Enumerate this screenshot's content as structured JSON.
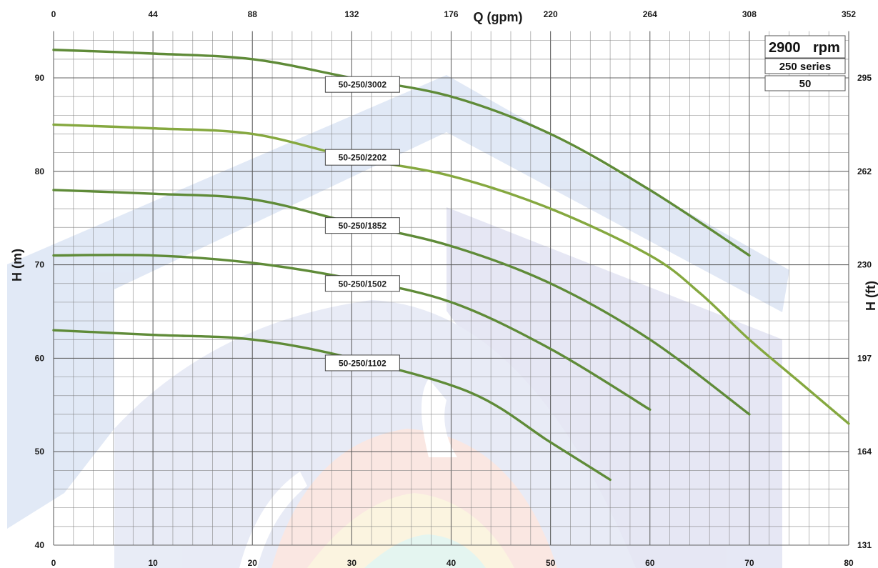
{
  "chart_data": {
    "type": "line",
    "x_bottom": {
      "label": "",
      "range": [
        0,
        80
      ],
      "ticks": [
        "0",
        "10",
        "20",
        "30",
        "40",
        "50",
        "60",
        "70",
        "80"
      ]
    },
    "x_top": {
      "label": "Q (gpm)",
      "range": [
        0,
        352
      ],
      "ticks": [
        "0",
        "44",
        "88",
        "132",
        "176",
        "220",
        "264",
        "308",
        "352"
      ]
    },
    "y_left": {
      "label": "H (m)",
      "range": [
        40,
        95
      ],
      "ticks": [
        "40",
        "50",
        "60",
        "70",
        "80",
        "90"
      ]
    },
    "y_right": {
      "label": "H (ft)",
      "ticks": [
        "131",
        "164",
        "197",
        "230",
        "262",
        "295"
      ]
    },
    "grid": true,
    "legend": "none",
    "info_box": {
      "speed": "2900",
      "speed_unit": "rpm",
      "series_name": "250 series",
      "frequency": "50"
    },
    "series": [
      {
        "name": "50-250/3002",
        "label_at": [
          30,
          89.3
        ],
        "points": [
          [
            0,
            93
          ],
          [
            10,
            92.6
          ],
          [
            20,
            92
          ],
          [
            30,
            90
          ],
          [
            40,
            88
          ],
          [
            50,
            84
          ],
          [
            60,
            78
          ],
          [
            70,
            71
          ]
        ]
      },
      {
        "name": "50-250/2202",
        "label_at": [
          30,
          81.5
        ],
        "points": [
          [
            0,
            85
          ],
          [
            10,
            84.6
          ],
          [
            20,
            84
          ],
          [
            30,
            81.5
          ],
          [
            40,
            79.5
          ],
          [
            50,
            76
          ],
          [
            60,
            71
          ],
          [
            65,
            67
          ],
          [
            70,
            62
          ],
          [
            75,
            57.5
          ],
          [
            80,
            53
          ]
        ]
      },
      {
        "name": "50-250/1852",
        "label_at": [
          30,
          74.2
        ],
        "points": [
          [
            0,
            78
          ],
          [
            10,
            77.6
          ],
          [
            20,
            77
          ],
          [
            30,
            74.5
          ],
          [
            40,
            72
          ],
          [
            50,
            68
          ],
          [
            60,
            62
          ],
          [
            70,
            54
          ]
        ]
      },
      {
        "name": "50-250/1502",
        "label_at": [
          30,
          68
        ],
        "points": [
          [
            0,
            71
          ],
          [
            10,
            71
          ],
          [
            20,
            70.2
          ],
          [
            30,
            68.5
          ],
          [
            40,
            66
          ],
          [
            50,
            61
          ],
          [
            60,
            54.5
          ]
        ]
      },
      {
        "name": "50-250/1102",
        "label_at": [
          30,
          59.5
        ],
        "points": [
          [
            0,
            63
          ],
          [
            10,
            62.5
          ],
          [
            20,
            62
          ],
          [
            30,
            60
          ],
          [
            42,
            56.3
          ],
          [
            50,
            51
          ],
          [
            56,
            47
          ]
        ]
      }
    ]
  },
  "colors": {
    "curve_dark": "#5f8b38",
    "curve_light": "#85a83f",
    "grid": "#7a7a7a"
  }
}
